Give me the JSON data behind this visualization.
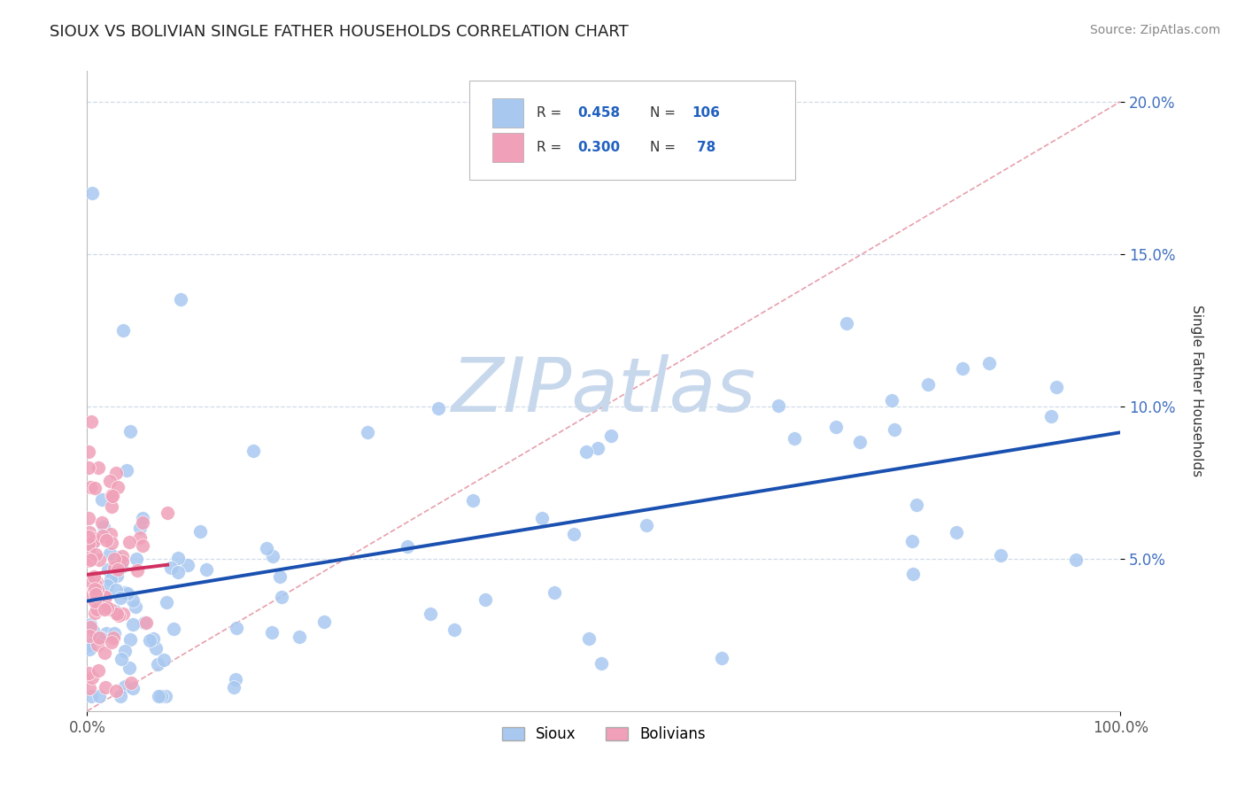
{
  "title": "SIOUX VS BOLIVIAN SINGLE FATHER HOUSEHOLDS CORRELATION CHART",
  "source": "Source: ZipAtlas.com",
  "ylabel": "Single Father Households",
  "legend_sioux_R": "0.458",
  "legend_sioux_N": "106",
  "legend_bolivian_R": "0.300",
  "legend_bolivian_N": "78",
  "sioux_color": "#a8c8f0",
  "bolivian_color": "#f0a0b8",
  "trend_sioux_color": "#1a50b0",
  "trend_bolivian_color": "#d03060",
  "ref_line_color": "#e08898",
  "watermark_color": "#c8d8ec",
  "background_color": "#ffffff",
  "grid_color": "#d0dce8",
  "legend_text_color": "#2060c0",
  "legend_label_color": "#333333",
  "xlim": [
    0,
    1.0
  ],
  "ylim": [
    0,
    0.21
  ],
  "ytick_positions": [
    0.05,
    0.1,
    0.15,
    0.2
  ],
  "ytick_labels": [
    "5.0%",
    "10.0%",
    "15.0%",
    "20.0%"
  ],
  "xtick_positions": [
    0.0,
    1.0
  ],
  "xtick_labels": [
    "0.0%",
    "100.0%"
  ]
}
